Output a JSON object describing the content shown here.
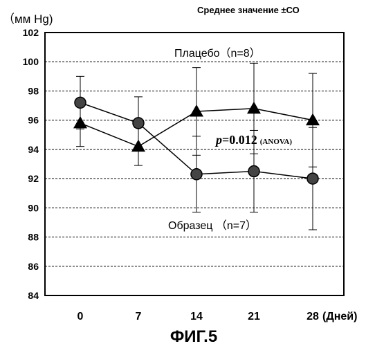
{
  "chart_data": {
    "type": "line",
    "ylabel": "（мм Hg)",
    "legend_note": "Среднее значение ±СО",
    "x": [
      0,
      7,
      14,
      21,
      28
    ],
    "x_tick_labels": [
      "0",
      "7",
      "14",
      "21",
      "28"
    ],
    "xlabel": "(Дней)",
    "y_ticks": [
      84,
      86,
      88,
      90,
      92,
      94,
      96,
      98,
      100,
      102
    ],
    "ylim": [
      84,
      102
    ],
    "grid": "horizontal dashed",
    "series": [
      {
        "name": "Плацебо（n=8）",
        "marker": "triangle",
        "values": [
          95.8,
          94.2,
          96.6,
          96.8,
          96.0
        ],
        "sd": [
          1.6,
          1.3,
          3.0,
          3.1,
          3.2
        ]
      },
      {
        "name": "Образец （n=7）",
        "marker": "circle",
        "values": [
          97.2,
          95.8,
          92.3,
          92.5,
          92.0
        ],
        "sd": [
          1.8,
          1.8,
          2.6,
          2.8,
          3.5
        ]
      }
    ],
    "annotation_p": "p",
    "annotation_value": "=0.012",
    "annotation_test": "(ANOVA)"
  },
  "figure_caption": "ФИГ.5"
}
